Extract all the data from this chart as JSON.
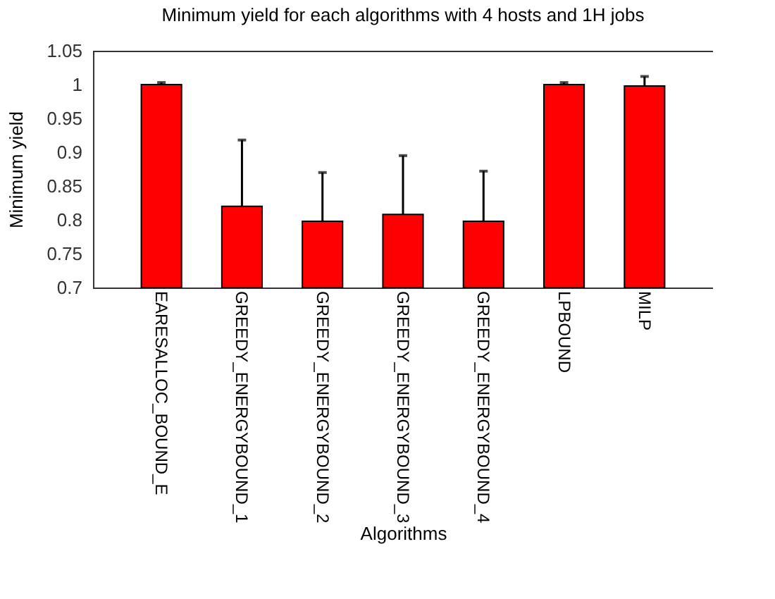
{
  "chart_data": {
    "type": "bar",
    "title": "Minimum yield for each algorithms with 4 hosts and 1H jobs",
    "xlabel": "Algorithms",
    "ylabel": "Minimum yield",
    "categories": [
      "EARESALLOC_BOUND_E",
      "GREEDY_ENERGYBOUND_1",
      "GREEDY_ENERGYBOUND_2",
      "GREEDY_ENERGYBOUND_3",
      "GREEDY_ENERGYBOUND_4",
      "LPBOUND",
      "MILP"
    ],
    "values": [
      1.0,
      0.82,
      0.798,
      0.808,
      0.798,
      1.0,
      0.998
    ],
    "errors": [
      [
        1.0,
        1.003
      ],
      [
        0.82,
        0.918
      ],
      [
        0.798,
        0.87
      ],
      [
        0.808,
        0.895
      ],
      [
        0.798,
        0.872
      ],
      [
        1.0,
        1.003
      ],
      [
        0.998,
        1.012
      ]
    ],
    "color": "#ff0000",
    "ylim": [
      0.7,
      1.05
    ],
    "yticks": [
      0.7,
      0.75,
      0.8,
      0.85,
      0.9,
      0.95,
      1,
      1.05
    ],
    "grid": false
  }
}
